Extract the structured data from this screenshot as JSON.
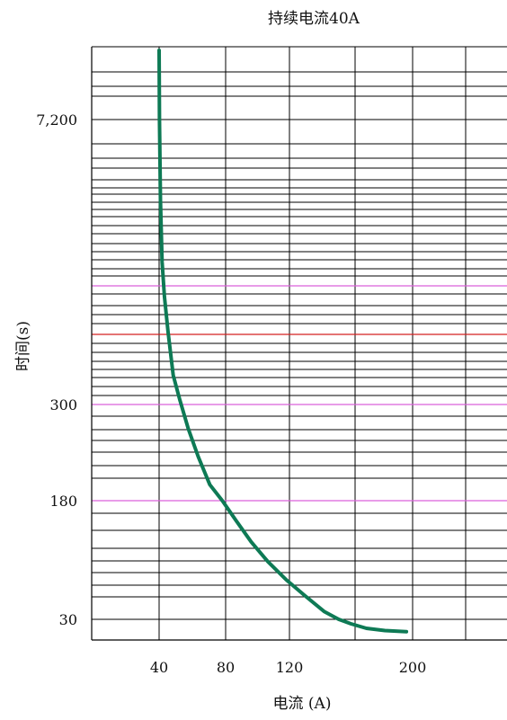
{
  "chart_data": {
    "type": "line",
    "title": "持续电流40A",
    "xlabel": "电流 (A)",
    "ylabel": "时间(s)",
    "x_ticks": [
      "40",
      "80",
      "120",
      "200"
    ],
    "y_ticks": [
      "7,200",
      "300",
      "180",
      "30"
    ],
    "grid": true,
    "series": [
      {
        "color": "#0e7a55",
        "x": [
          40.0,
          40.2,
          40.8,
          41.8,
          43.2,
          45.4,
          48.5,
          52.5,
          57.5,
          63.5,
          70.5,
          78.0,
          86.5,
          96.0,
          106.5,
          118.0,
          130.0,
          142.5,
          152.0,
          160.0,
          170.0,
          182.0,
          196.0
        ],
        "y": [
          9500,
          7200,
          4200,
          1900,
          900,
          560,
          400,
          315,
          270,
          235,
          200,
          180,
          155,
          128,
          103,
          80,
          60,
          40,
          30,
          26,
          22,
          20,
          19
        ]
      }
    ],
    "reference_lines": [
      {
        "label": "",
        "y_value": 1000,
        "color": "#d962d9"
      },
      {
        "label": "",
        "y_value": 540,
        "color": "#d42020"
      },
      {
        "label": "",
        "y_value": 300,
        "color": "#d962d9"
      },
      {
        "label": "",
        "y_value": 180,
        "color": "#d962d9"
      }
    ]
  }
}
